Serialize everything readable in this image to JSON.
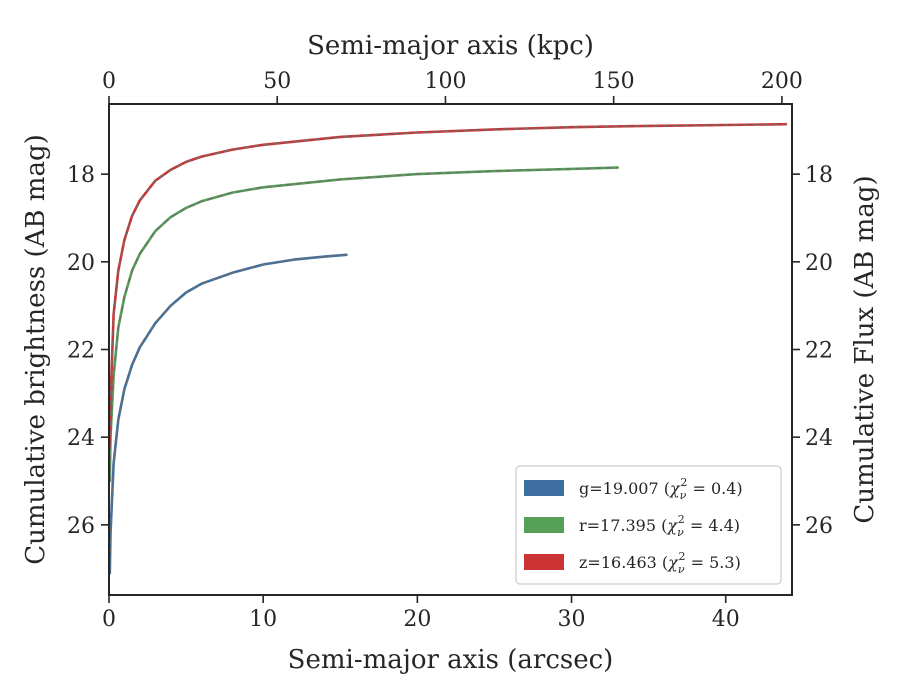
{
  "chart_data": {
    "type": "line",
    "xlabel": "Semi-major axis (arcsec)",
    "x2label": "Semi-major axis (kpc)",
    "ylabel": "Cumulative brightness (AB mag)",
    "y2label": "Cumulative Flux (AB mag)",
    "xlim": [
      0,
      44.3
    ],
    "ylim": [
      27.6,
      16.4
    ],
    "x2lim": [
      0,
      203.0
    ],
    "y_inverted": true,
    "xticks": [
      "0",
      "10",
      "20",
      "30",
      "40"
    ],
    "xtick_values": [
      0,
      10,
      20,
      30,
      40
    ],
    "x2ticks": [
      "0",
      "50",
      "100",
      "150",
      "200"
    ],
    "x2tick_values": [
      0,
      50,
      100,
      150,
      200
    ],
    "yticks": [
      "18",
      "20",
      "22",
      "24",
      "26"
    ],
    "ytick_values": [
      18,
      20,
      22,
      24,
      26
    ],
    "legend_position": "lower-right",
    "series": [
      {
        "name": "g",
        "legend_label": "g=19.007 (",
        "chi2": "0.4",
        "color": "#3d6fa0",
        "x": [
          0.05,
          0.1,
          0.3,
          0.6,
          1.0,
          1.5,
          2.0,
          3.0,
          4.0,
          5.0,
          6.0,
          8.0,
          10.0,
          12.0,
          14.0,
          15.4
        ],
        "y": [
          27.1,
          26.2,
          24.6,
          23.6,
          22.9,
          22.35,
          21.95,
          21.4,
          21.0,
          20.7,
          20.5,
          20.25,
          20.06,
          19.95,
          19.88,
          19.84
        ]
      },
      {
        "name": "r",
        "legend_label": "r=17.395 (",
        "chi2": "4.4",
        "color": "#55a055",
        "x": [
          0.05,
          0.1,
          0.3,
          0.6,
          1.0,
          1.5,
          2.0,
          3.0,
          4.0,
          5.0,
          6.0,
          8.0,
          10.0,
          15.0,
          20.0,
          25.0,
          30.0,
          33.0
        ],
        "y": [
          25.0,
          24.0,
          22.6,
          21.5,
          20.8,
          20.2,
          19.82,
          19.3,
          18.98,
          18.77,
          18.62,
          18.42,
          18.3,
          18.12,
          18.0,
          17.93,
          17.88,
          17.85
        ]
      },
      {
        "name": "z",
        "legend_label": "z=16.463 (",
        "chi2": "5.3",
        "color": "#cc3333",
        "x": [
          0.05,
          0.1,
          0.3,
          0.6,
          1.0,
          1.5,
          2.0,
          3.0,
          4.0,
          5.0,
          6.0,
          8.0,
          10.0,
          15.0,
          20.0,
          25.0,
          30.0,
          35.0,
          40.0,
          43.9
        ],
        "y": [
          24.2,
          23.2,
          21.2,
          20.2,
          19.5,
          18.95,
          18.6,
          18.15,
          17.9,
          17.72,
          17.6,
          17.44,
          17.33,
          17.15,
          17.05,
          16.98,
          16.93,
          16.9,
          16.88,
          16.86
        ]
      }
    ]
  }
}
